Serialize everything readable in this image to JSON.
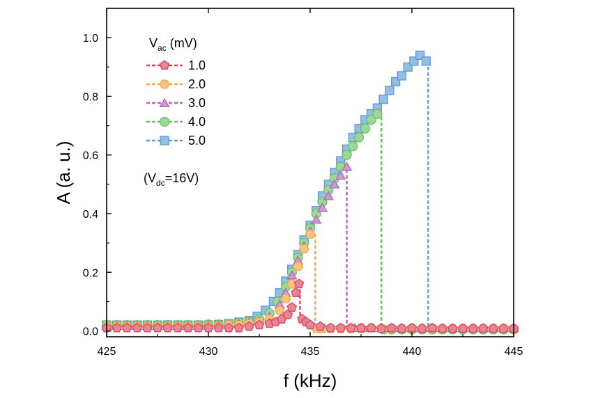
{
  "chart_data": {
    "type": "scatter",
    "xlabel": "f (kHz)",
    "ylabel": "A (a. u.)",
    "xlim": [
      425,
      445
    ],
    "ylim": [
      -0.02,
      1.1
    ],
    "x_ticks": [
      425,
      430,
      435,
      440,
      445
    ],
    "y_ticks": [
      0.0,
      0.2,
      0.4,
      0.6,
      0.8,
      1.0
    ],
    "x_tick_labels": [
      "425",
      "430",
      "435",
      "440",
      "445"
    ],
    "y_tick_labels": [
      "0.0",
      "0.2",
      "0.4",
      "0.6",
      "0.8",
      "1.0"
    ],
    "legend": {
      "title_main": "V",
      "title_sub": "ac",
      "title_unit": " (mV)",
      "placement": "top-left"
    },
    "annotation": {
      "prefix": "(V",
      "sub": "dc",
      "suffix": "=16V)"
    },
    "series": [
      {
        "name": "1.0",
        "color": "#d9435b",
        "marker": "pentagon",
        "x": [
          425.0,
          425.5,
          426.0,
          426.5,
          427.0,
          427.5,
          428.0,
          428.5,
          429.0,
          429.5,
          430.0,
          430.5,
          431.0,
          431.5,
          432.0,
          432.5,
          433.0,
          433.3,
          433.6,
          433.9,
          434.1,
          434.3,
          434.45,
          434.6,
          434.8,
          435.0,
          435.5,
          436.0,
          436.5,
          437.0,
          437.5,
          438.0,
          438.5,
          439.0,
          439.5,
          440.0,
          440.5,
          441.0,
          441.5,
          442.0,
          442.5,
          443.0,
          443.5,
          444.0,
          444.5,
          445.0
        ],
        "y": [
          0.01,
          0.01,
          0.01,
          0.01,
          0.01,
          0.01,
          0.01,
          0.01,
          0.01,
          0.01,
          0.01,
          0.01,
          0.01,
          0.01,
          0.015,
          0.02,
          0.025,
          0.03,
          0.04,
          0.055,
          0.08,
          0.13,
          0.16,
          0.04,
          0.03,
          0.02,
          0.015,
          0.01,
          0.01,
          0.01,
          0.01,
          0.01,
          0.008,
          0.01,
          0.008,
          0.01,
          0.008,
          0.01,
          0.008,
          0.008,
          0.008,
          0.008,
          0.008,
          0.008,
          0.008,
          0.008
        ],
        "jump_x": 434.5,
        "jump_y_top": 0.16,
        "jump_y_bottom": 0.04
      },
      {
        "name": "2.0",
        "color": "#f7a341",
        "marker": "hexagon",
        "x": [
          425.0,
          425.5,
          426.0,
          426.5,
          427.0,
          427.5,
          428.0,
          428.5,
          429.0,
          429.5,
          430.0,
          430.5,
          431.0,
          431.5,
          432.0,
          432.5,
          433.0,
          433.5,
          433.8,
          434.1,
          434.4,
          434.7,
          435.0,
          435.3,
          435.6,
          436.0,
          436.5,
          437.0,
          437.5,
          438.0,
          438.5,
          439.0,
          439.5,
          440.0,
          440.5,
          441.0,
          441.5,
          442.0,
          442.5,
          443.0,
          443.5,
          444.0,
          444.5,
          445.0
        ],
        "y": [
          0.015,
          0.015,
          0.015,
          0.015,
          0.015,
          0.015,
          0.015,
          0.015,
          0.015,
          0.015,
          0.015,
          0.015,
          0.02,
          0.02,
          0.025,
          0.03,
          0.04,
          0.07,
          0.11,
          0.16,
          0.22,
          0.28,
          0.33,
          0.008,
          0.008,
          0.008,
          0.008,
          0.008,
          0.008,
          0.01,
          0.008,
          0.008,
          0.008,
          0.008,
          0.008,
          0.008,
          0.008,
          0.008,
          0.008,
          0.008,
          0.008,
          0.008,
          0.008,
          0.008
        ],
        "jump_x": 435.25,
        "jump_y_top": 0.33,
        "jump_y_bottom": 0.005
      },
      {
        "name": "3.0",
        "color": "#b066b8",
        "marker": "triangle",
        "x": [
          425.0,
          425.5,
          426.0,
          426.5,
          427.0,
          427.5,
          428.0,
          428.5,
          429.0,
          429.5,
          430.0,
          430.5,
          431.0,
          431.5,
          432.0,
          432.5,
          433.0,
          433.5,
          433.8,
          434.1,
          434.4,
          434.7,
          435.0,
          435.3,
          435.6,
          435.9,
          436.2,
          436.5,
          436.8,
          437.2,
          437.6,
          438.0,
          438.5,
          439.0,
          439.5,
          440.0,
          440.5,
          441.0,
          441.5,
          442.0,
          442.5,
          443.0,
          443.5,
          444.0,
          444.5,
          445.0
        ],
        "y": [
          0.018,
          0.018,
          0.018,
          0.018,
          0.018,
          0.018,
          0.018,
          0.018,
          0.018,
          0.018,
          0.02,
          0.02,
          0.022,
          0.025,
          0.03,
          0.035,
          0.05,
          0.09,
          0.13,
          0.19,
          0.24,
          0.29,
          0.34,
          0.38,
          0.42,
          0.46,
          0.5,
          0.53,
          0.56,
          0.01,
          0.01,
          0.01,
          0.01,
          0.01,
          0.01,
          0.01,
          0.01,
          0.01,
          0.01,
          0.01,
          0.01,
          0.01,
          0.01,
          0.01,
          0.01,
          0.01
        ],
        "jump_x": 436.8,
        "jump_y_top": 0.55,
        "jump_y_bottom": 0.01
      },
      {
        "name": "4.0",
        "color": "#69c060",
        "marker": "circle",
        "x": [
          425.0,
          425.5,
          426.0,
          426.5,
          427.0,
          427.5,
          428.0,
          428.5,
          429.0,
          429.5,
          430.0,
          430.5,
          431.0,
          431.5,
          432.0,
          432.5,
          433.0,
          433.4,
          433.8,
          434.1,
          434.4,
          434.7,
          435.0,
          435.3,
          435.6,
          435.9,
          436.2,
          436.5,
          436.8,
          437.1,
          437.4,
          437.7,
          438.0,
          438.3,
          438.6,
          439.0,
          439.5,
          440.0,
          440.5,
          441.0,
          441.5,
          442.0,
          442.5,
          443.0,
          443.5,
          444.0,
          444.5,
          445.0
        ],
        "y": [
          0.02,
          0.02,
          0.02,
          0.02,
          0.02,
          0.02,
          0.02,
          0.02,
          0.02,
          0.02,
          0.022,
          0.022,
          0.025,
          0.028,
          0.032,
          0.04,
          0.06,
          0.1,
          0.15,
          0.2,
          0.25,
          0.3,
          0.35,
          0.4,
          0.44,
          0.48,
          0.52,
          0.56,
          0.6,
          0.63,
          0.66,
          0.69,
          0.72,
          0.74,
          0.005,
          0.005,
          0.005,
          0.005,
          0.005,
          0.005,
          0.005,
          0.005,
          0.005,
          0.005,
          0.005,
          0.005,
          0.005,
          0.005
        ],
        "jump_x": 438.5,
        "jump_y_top": 0.73,
        "jump_y_bottom": 0.005
      },
      {
        "name": "5.0",
        "color": "#5b9bd5",
        "marker": "square",
        "x": [
          425.0,
          425.5,
          426.0,
          426.5,
          427.0,
          427.5,
          428.0,
          428.5,
          429.0,
          429.5,
          430.0,
          430.5,
          431.0,
          431.5,
          432.0,
          432.4,
          432.8,
          433.2,
          433.5,
          433.8,
          434.1,
          434.4,
          434.7,
          435.0,
          435.3,
          435.6,
          435.9,
          436.2,
          436.5,
          436.8,
          437.1,
          437.4,
          437.7,
          438.0,
          438.3,
          438.6,
          438.9,
          439.2,
          439.5,
          439.8,
          440.1,
          440.4,
          440.7
        ],
        "y": [
          0.02,
          0.02,
          0.02,
          0.02,
          0.02,
          0.02,
          0.02,
          0.02,
          0.02,
          0.02,
          0.02,
          0.022,
          0.025,
          0.03,
          0.035,
          0.05,
          0.07,
          0.1,
          0.13,
          0.17,
          0.21,
          0.26,
          0.31,
          0.36,
          0.41,
          0.46,
          0.5,
          0.54,
          0.58,
          0.62,
          0.66,
          0.69,
          0.72,
          0.74,
          0.76,
          0.79,
          0.82,
          0.85,
          0.87,
          0.9,
          0.92,
          0.94,
          0.92
        ],
        "jump_x": 440.8,
        "jump_y_top": 0.92,
        "jump_y_bottom": 0.005
      }
    ]
  }
}
